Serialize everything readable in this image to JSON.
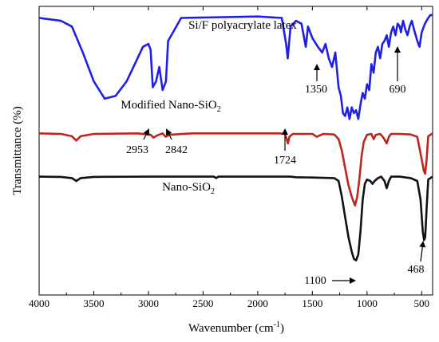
{
  "chart_data": {
    "type": "line",
    "xlabel": "Wavenumber (cm",
    "xlabel_sup": "-1",
    "xlabel_close": ")",
    "ylabel": "Transmittance (%)",
    "xlim": [
      4000,
      400
    ],
    "x_reversed": true,
    "x_ticks": [
      4000,
      3500,
      3000,
      2500,
      2000,
      1500,
      1000,
      500
    ],
    "y_ticks_shown": false,
    "grid": false,
    "legend": "none",
    "series": [
      {
        "label_text": "Si/F polyacrylate latex",
        "color": "#1f1fe6",
        "points": [
          [
            4000,
            0.96
          ],
          [
            3800,
            0.95
          ],
          [
            3700,
            0.93
          ],
          [
            3600,
            0.84
          ],
          [
            3500,
            0.74
          ],
          [
            3400,
            0.68
          ],
          [
            3300,
            0.69
          ],
          [
            3200,
            0.74
          ],
          [
            3100,
            0.82
          ],
          [
            3050,
            0.86
          ],
          [
            3000,
            0.87
          ],
          [
            2980,
            0.85
          ],
          [
            2960,
            0.72
          ],
          [
            2930,
            0.74
          ],
          [
            2900,
            0.79
          ],
          [
            2870,
            0.71
          ],
          [
            2840,
            0.74
          ],
          [
            2820,
            0.88
          ],
          [
            2700,
            0.96
          ],
          [
            2000,
            0.965
          ],
          [
            1780,
            0.96
          ],
          [
            1740,
            0.87
          ],
          [
            1725,
            0.82
          ],
          [
            1700,
            0.93
          ],
          [
            1650,
            0.95
          ],
          [
            1600,
            0.94
          ],
          [
            1560,
            0.86
          ],
          [
            1540,
            0.93
          ],
          [
            1500,
            0.89
          ],
          [
            1450,
            0.86
          ],
          [
            1410,
            0.84
          ],
          [
            1380,
            0.87
          ],
          [
            1350,
            0.82
          ],
          [
            1320,
            0.79
          ],
          [
            1290,
            0.84
          ],
          [
            1260,
            0.72
          ],
          [
            1240,
            0.69
          ],
          [
            1220,
            0.63
          ],
          [
            1200,
            0.62
          ],
          [
            1180,
            0.65
          ],
          [
            1160,
            0.61
          ],
          [
            1140,
            0.65
          ],
          [
            1120,
            0.63
          ],
          [
            1100,
            0.64
          ],
          [
            1080,
            0.61
          ],
          [
            1060,
            0.66
          ],
          [
            1040,
            0.7
          ],
          [
            1020,
            0.68
          ],
          [
            1000,
            0.73
          ],
          [
            980,
            0.71
          ],
          [
            960,
            0.8
          ],
          [
            940,
            0.77
          ],
          [
            920,
            0.84
          ],
          [
            900,
            0.86
          ],
          [
            880,
            0.82
          ],
          [
            860,
            0.87
          ],
          [
            840,
            0.88
          ],
          [
            820,
            0.9
          ],
          [
            800,
            0.86
          ],
          [
            780,
            0.91
          ],
          [
            760,
            0.93
          ],
          [
            740,
            0.9
          ],
          [
            720,
            0.94
          ],
          [
            700,
            0.93
          ],
          [
            690,
            0.91
          ],
          [
            670,
            0.95
          ],
          [
            650,
            0.92
          ],
          [
            630,
            0.9
          ],
          [
            610,
            0.93
          ],
          [
            590,
            0.95
          ],
          [
            570,
            0.92
          ],
          [
            540,
            0.88
          ],
          [
            520,
            0.86
          ],
          [
            500,
            0.91
          ],
          [
            470,
            0.94
          ],
          [
            440,
            0.96
          ],
          [
            420,
            0.97
          ],
          [
            400,
            0.97
          ]
        ]
      },
      {
        "label_text": "Modified Nano-SiO",
        "label_sub": "2",
        "color": "#c0251b",
        "points": [
          [
            4000,
            0.56
          ],
          [
            3800,
            0.558
          ],
          [
            3700,
            0.55
          ],
          [
            3660,
            0.535
          ],
          [
            3620,
            0.55
          ],
          [
            3500,
            0.558
          ],
          [
            3100,
            0.56
          ],
          [
            2980,
            0.555
          ],
          [
            2953,
            0.545
          ],
          [
            2920,
            0.553
          ],
          [
            2870,
            0.56
          ],
          [
            2842,
            0.548
          ],
          [
            2810,
            0.555
          ],
          [
            2600,
            0.56
          ],
          [
            1800,
            0.56
          ],
          [
            1750,
            0.558
          ],
          [
            1735,
            0.54
          ],
          [
            1724,
            0.525
          ],
          [
            1710,
            0.548
          ],
          [
            1680,
            0.558
          ],
          [
            1500,
            0.558
          ],
          [
            1460,
            0.548
          ],
          [
            1400,
            0.558
          ],
          [
            1300,
            0.556
          ],
          [
            1260,
            0.54
          ],
          [
            1230,
            0.5
          ],
          [
            1200,
            0.44
          ],
          [
            1170,
            0.38
          ],
          [
            1140,
            0.34
          ],
          [
            1110,
            0.31
          ],
          [
            1090,
            0.34
          ],
          [
            1070,
            0.4
          ],
          [
            1050,
            0.48
          ],
          [
            1030,
            0.53
          ],
          [
            1000,
            0.555
          ],
          [
            960,
            0.558
          ],
          [
            940,
            0.54
          ],
          [
            920,
            0.555
          ],
          [
            880,
            0.558
          ],
          [
            850,
            0.545
          ],
          [
            820,
            0.525
          ],
          [
            800,
            0.548
          ],
          [
            780,
            0.558
          ],
          [
            700,
            0.558
          ],
          [
            600,
            0.556
          ],
          [
            540,
            0.548
          ],
          [
            500,
            0.47
          ],
          [
            480,
            0.43
          ],
          [
            468,
            0.42
          ],
          [
            455,
            0.47
          ],
          [
            440,
            0.55
          ],
          [
            400,
            0.56
          ]
        ]
      },
      {
        "label_text": "Nano-SiO",
        "label_sub": "2",
        "color": "#111111",
        "points": [
          [
            4000,
            0.41
          ],
          [
            3800,
            0.409
          ],
          [
            3700,
            0.405
          ],
          [
            3660,
            0.395
          ],
          [
            3620,
            0.405
          ],
          [
            3500,
            0.409
          ],
          [
            3000,
            0.41
          ],
          [
            2400,
            0.41
          ],
          [
            2380,
            0.405
          ],
          [
            2360,
            0.41
          ],
          [
            1700,
            0.41
          ],
          [
            1650,
            0.408
          ],
          [
            1500,
            0.407
          ],
          [
            1300,
            0.405
          ],
          [
            1260,
            0.395
          ],
          [
            1230,
            0.34
          ],
          [
            1200,
            0.27
          ],
          [
            1170,
            0.2
          ],
          [
            1140,
            0.15
          ],
          [
            1120,
            0.125
          ],
          [
            1100,
            0.12
          ],
          [
            1080,
            0.14
          ],
          [
            1060,
            0.22
          ],
          [
            1040,
            0.33
          ],
          [
            1020,
            0.385
          ],
          [
            1000,
            0.4
          ],
          [
            970,
            0.395
          ],
          [
            950,
            0.385
          ],
          [
            930,
            0.395
          ],
          [
            900,
            0.405
          ],
          [
            870,
            0.41
          ],
          [
            840,
            0.395
          ],
          [
            820,
            0.37
          ],
          [
            800,
            0.395
          ],
          [
            780,
            0.41
          ],
          [
            700,
            0.41
          ],
          [
            600,
            0.405
          ],
          [
            540,
            0.395
          ],
          [
            510,
            0.33
          ],
          [
            490,
            0.22
          ],
          [
            478,
            0.19
          ],
          [
            468,
            0.2
          ],
          [
            455,
            0.3
          ],
          [
            440,
            0.4
          ],
          [
            400,
            0.41
          ]
        ]
      }
    ],
    "annotations": [
      {
        "text": "1350",
        "series": 0,
        "x": 1350
      },
      {
        "text": "690",
        "series": 0,
        "x": 690
      },
      {
        "text": "2953",
        "series": 1,
        "x": 2953
      },
      {
        "text": "2842",
        "series": 1,
        "x": 2842
      },
      {
        "text": "1724",
        "series": 1,
        "x": 1724
      },
      {
        "text": "1100",
        "series": 2,
        "x": 1100
      },
      {
        "text": "468",
        "series": 2,
        "x": 468
      }
    ]
  }
}
